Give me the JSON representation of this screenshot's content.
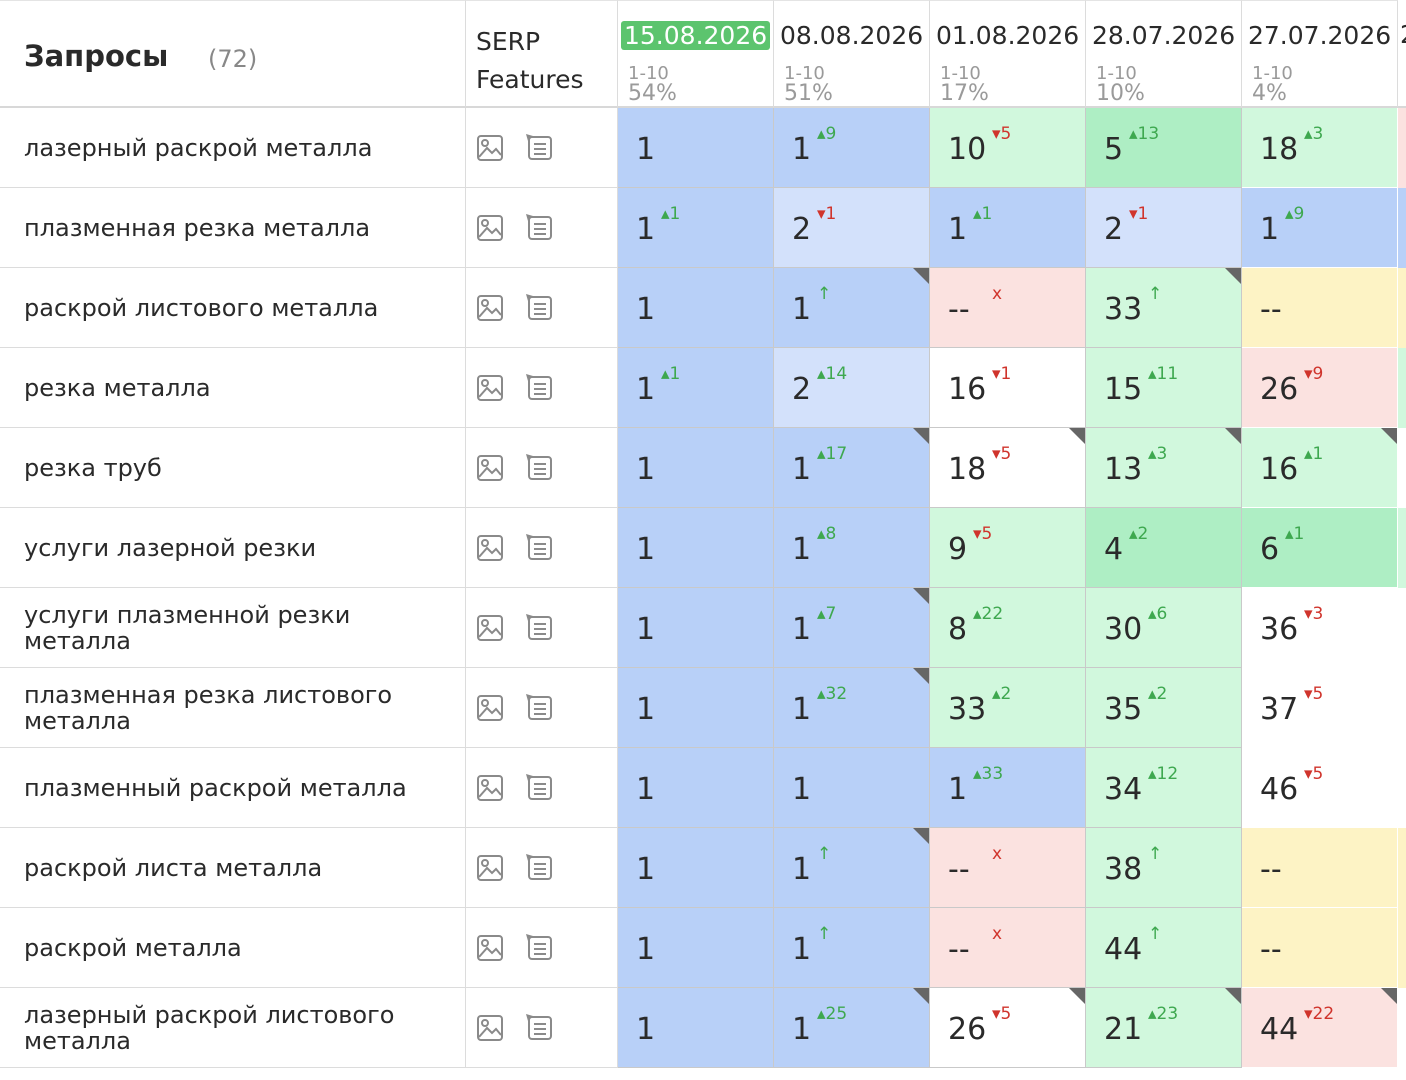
{
  "header": {
    "query_title": "Запросы",
    "query_count": "(72)",
    "serp_line1": "SERP",
    "serp_line2": "Features",
    "dates": [
      {
        "date": "15.08.2026",
        "range": "1-10",
        "percent": "54%",
        "active": true
      },
      {
        "date": "08.08.2026",
        "range": "1-10",
        "percent": "51%",
        "active": false
      },
      {
        "date": "01.08.2026",
        "range": "1-10",
        "percent": "17%",
        "active": false
      },
      {
        "date": "28.07.2026",
        "range": "1-10",
        "percent": "10%",
        "active": false
      },
      {
        "date": "27.07.2026",
        "range": "1-10",
        "percent": "4%",
        "active": false
      }
    ],
    "next_col_hint": "2"
  },
  "colors": {
    "blue": "#b8d0f8",
    "light_blue": "#d3e1fb",
    "green": "#aeeec4",
    "light_green": "#d1f8dd",
    "white": "#ffffff",
    "pink": "#fbe2e0",
    "yellow": "#fdf3c5",
    "active_date": "#5cc46e",
    "up": "#3ea84f",
    "down": "#d0342c"
  },
  "icons": {
    "serp_image": "image-icon",
    "serp_snippet": "featured-snippet-icon"
  },
  "rows": [
    {
      "query": "лазерный раскрой металла",
      "cells": [
        {
          "pos": "1",
          "chg": "",
          "dir": "",
          "color": "blue",
          "flag": false
        },
        {
          "pos": "1",
          "chg": "9",
          "dir": "up",
          "color": "blue",
          "flag": false
        },
        {
          "pos": "10",
          "chg": "5",
          "dir": "down",
          "color": "light_green",
          "flag": false
        },
        {
          "pos": "5",
          "chg": "13",
          "dir": "up",
          "color": "green",
          "flag": false
        },
        {
          "pos": "18",
          "chg": "3",
          "dir": "up",
          "color": "light_green",
          "flag": false
        }
      ],
      "edge": "pink"
    },
    {
      "query": "плазменная резка металла",
      "cells": [
        {
          "pos": "1",
          "chg": "1",
          "dir": "up",
          "color": "blue",
          "flag": false
        },
        {
          "pos": "2",
          "chg": "1",
          "dir": "down",
          "color": "light_blue",
          "flag": false
        },
        {
          "pos": "1",
          "chg": "1",
          "dir": "up",
          "color": "blue",
          "flag": false
        },
        {
          "pos": "2",
          "chg": "1",
          "dir": "down",
          "color": "light_blue",
          "flag": false
        },
        {
          "pos": "1",
          "chg": "9",
          "dir": "up",
          "color": "blue",
          "flag": false
        }
      ],
      "edge": "blue"
    },
    {
      "query": "раскрой листового металла",
      "cells": [
        {
          "pos": "1",
          "chg": "",
          "dir": "",
          "color": "blue",
          "flag": false
        },
        {
          "pos": "1",
          "chg": "↑",
          "dir": "new",
          "color": "blue",
          "flag": true
        },
        {
          "pos": "--",
          "chg": "x",
          "dir": "x",
          "color": "pink",
          "flag": false
        },
        {
          "pos": "33",
          "chg": "↑",
          "dir": "new",
          "color": "light_green",
          "flag": true
        },
        {
          "pos": "--",
          "chg": "",
          "dir": "",
          "color": "yellow",
          "flag": false
        }
      ],
      "edge": "yellow"
    },
    {
      "query": "резка металла",
      "cells": [
        {
          "pos": "1",
          "chg": "1",
          "dir": "up",
          "color": "blue",
          "flag": false
        },
        {
          "pos": "2",
          "chg": "14",
          "dir": "up",
          "color": "light_blue",
          "flag": false
        },
        {
          "pos": "16",
          "chg": "1",
          "dir": "down",
          "color": "white",
          "flag": false
        },
        {
          "pos": "15",
          "chg": "11",
          "dir": "up",
          "color": "light_green",
          "flag": false
        },
        {
          "pos": "26",
          "chg": "9",
          "dir": "down",
          "color": "pink",
          "flag": false
        }
      ],
      "edge": "light_green"
    },
    {
      "query": "резка труб",
      "cells": [
        {
          "pos": "1",
          "chg": "",
          "dir": "",
          "color": "blue",
          "flag": false
        },
        {
          "pos": "1",
          "chg": "17",
          "dir": "up",
          "color": "blue",
          "flag": true
        },
        {
          "pos": "18",
          "chg": "5",
          "dir": "down",
          "color": "white",
          "flag": true
        },
        {
          "pos": "13",
          "chg": "3",
          "dir": "up",
          "color": "light_green",
          "flag": true
        },
        {
          "pos": "16",
          "chg": "1",
          "dir": "up",
          "color": "light_green",
          "flag": true
        }
      ],
      "edge": "white"
    },
    {
      "query": "услуги лазерной резки",
      "cells": [
        {
          "pos": "1",
          "chg": "",
          "dir": "",
          "color": "blue",
          "flag": false
        },
        {
          "pos": "1",
          "chg": "8",
          "dir": "up",
          "color": "blue",
          "flag": false
        },
        {
          "pos": "9",
          "chg": "5",
          "dir": "down",
          "color": "light_green",
          "flag": false
        },
        {
          "pos": "4",
          "chg": "2",
          "dir": "up",
          "color": "green",
          "flag": false
        },
        {
          "pos": "6",
          "chg": "1",
          "dir": "up",
          "color": "green",
          "flag": false
        }
      ],
      "edge": "light_green"
    },
    {
      "query": "услуги плазменной резки металла",
      "cells": [
        {
          "pos": "1",
          "chg": "",
          "dir": "",
          "color": "blue",
          "flag": false
        },
        {
          "pos": "1",
          "chg": "7",
          "dir": "up",
          "color": "blue",
          "flag": true
        },
        {
          "pos": "8",
          "chg": "22",
          "dir": "up",
          "color": "light_green",
          "flag": false
        },
        {
          "pos": "30",
          "chg": "6",
          "dir": "up",
          "color": "light_green",
          "flag": false
        },
        {
          "pos": "36",
          "chg": "3",
          "dir": "down",
          "color": "white",
          "flag": false
        }
      ],
      "edge": "white"
    },
    {
      "query": "плазменная резка листового металла",
      "cells": [
        {
          "pos": "1",
          "chg": "",
          "dir": "",
          "color": "blue",
          "flag": false
        },
        {
          "pos": "1",
          "chg": "32",
          "dir": "up",
          "color": "blue",
          "flag": true
        },
        {
          "pos": "33",
          "chg": "2",
          "dir": "up",
          "color": "light_green",
          "flag": false
        },
        {
          "pos": "35",
          "chg": "2",
          "dir": "up",
          "color": "light_green",
          "flag": false
        },
        {
          "pos": "37",
          "chg": "5",
          "dir": "down",
          "color": "white",
          "flag": false
        }
      ],
      "edge": "white"
    },
    {
      "query": "плазменный раскрой металла",
      "cells": [
        {
          "pos": "1",
          "chg": "",
          "dir": "",
          "color": "blue",
          "flag": false
        },
        {
          "pos": "1",
          "chg": "",
          "dir": "",
          "color": "blue",
          "flag": false
        },
        {
          "pos": "1",
          "chg": "33",
          "dir": "up",
          "color": "blue",
          "flag": false
        },
        {
          "pos": "34",
          "chg": "12",
          "dir": "up",
          "color": "light_green",
          "flag": false
        },
        {
          "pos": "46",
          "chg": "5",
          "dir": "down",
          "color": "white",
          "flag": false
        }
      ],
      "edge": "white"
    },
    {
      "query": "раскрой листа металла",
      "cells": [
        {
          "pos": "1",
          "chg": "",
          "dir": "",
          "color": "blue",
          "flag": false
        },
        {
          "pos": "1",
          "chg": "↑",
          "dir": "new",
          "color": "blue",
          "flag": true
        },
        {
          "pos": "--",
          "chg": "x",
          "dir": "x",
          "color": "pink",
          "flag": false
        },
        {
          "pos": "38",
          "chg": "↑",
          "dir": "new",
          "color": "light_green",
          "flag": false
        },
        {
          "pos": "--",
          "chg": "",
          "dir": "",
          "color": "yellow",
          "flag": false
        }
      ],
      "edge": "yellow"
    },
    {
      "query": "раскрой металла",
      "cells": [
        {
          "pos": "1",
          "chg": "",
          "dir": "",
          "color": "blue",
          "flag": false
        },
        {
          "pos": "1",
          "chg": "↑",
          "dir": "new",
          "color": "blue",
          "flag": false
        },
        {
          "pos": "--",
          "chg": "x",
          "dir": "x",
          "color": "pink",
          "flag": false
        },
        {
          "pos": "44",
          "chg": "↑",
          "dir": "new",
          "color": "light_green",
          "flag": false
        },
        {
          "pos": "--",
          "chg": "",
          "dir": "",
          "color": "yellow",
          "flag": false
        }
      ],
      "edge": "yellow"
    },
    {
      "query": "лазерный раскрой листового металла",
      "cells": [
        {
          "pos": "1",
          "chg": "",
          "dir": "",
          "color": "blue",
          "flag": false
        },
        {
          "pos": "1",
          "chg": "25",
          "dir": "up",
          "color": "blue",
          "flag": true
        },
        {
          "pos": "26",
          "chg": "5",
          "dir": "down",
          "color": "white",
          "flag": true
        },
        {
          "pos": "21",
          "chg": "23",
          "dir": "up",
          "color": "light_green",
          "flag": true
        },
        {
          "pos": "44",
          "chg": "22",
          "dir": "down",
          "color": "pink",
          "flag": true
        }
      ],
      "edge": "white"
    }
  ]
}
